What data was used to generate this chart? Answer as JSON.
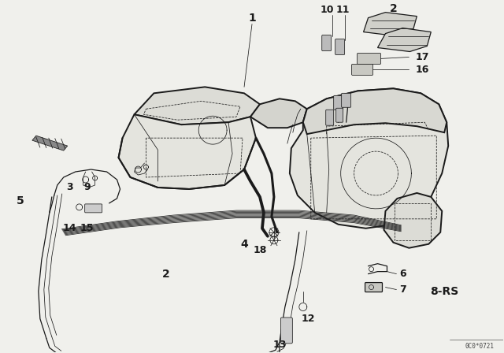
{
  "bg_color": "#f0f0ec",
  "line_color": "#1a1a1a",
  "fig_width": 6.4,
  "fig_height": 4.48,
  "dpi": 100,
  "diagram_code": "0C0*0721",
  "part_label": "8-RS"
}
